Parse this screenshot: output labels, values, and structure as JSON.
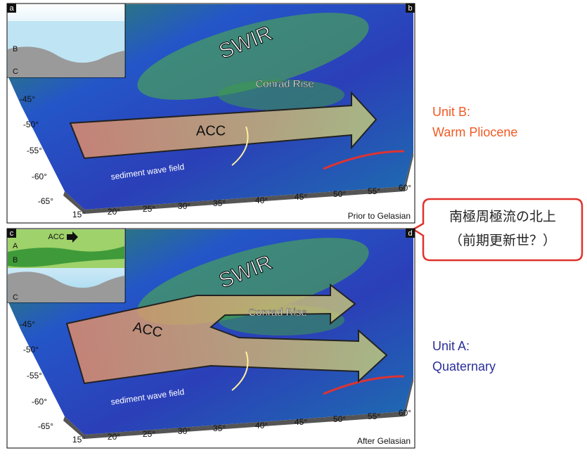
{
  "panels": [
    {
      "inset_label": "a",
      "map_label": "b",
      "inset_layers": [
        "B",
        "C"
      ],
      "swir": "SWIR",
      "conrad_rise": "Conrad Rise",
      "acc": "ACC",
      "sediment": "sediment wave field",
      "lat_labels": [
        "-45°",
        "-50°",
        "-55°",
        "-60°",
        "-65°"
      ],
      "lon_labels": [
        "15°",
        "20°",
        "25°",
        "30°",
        "35°",
        "40°",
        "45°",
        "50°",
        "55°",
        "60°"
      ],
      "caption": "Prior to Gelasian",
      "unit_name": "Unit B:",
      "unit_period": "Warm Pliocene"
    },
    {
      "inset_label": "c",
      "map_label": "d",
      "inset_layers": [
        "A",
        "B",
        "C"
      ],
      "inset_acc": "ACC",
      "swir": "SWIR",
      "conrad_rise": "Conrad Rise",
      "acc": "ACC",
      "sediment": "sediment wave field",
      "lat_labels": [
        "-45°",
        "-50°",
        "-55°",
        "-60°",
        "-65°"
      ],
      "lon_labels": [
        "15°",
        "20°",
        "25°",
        "30°",
        "35°",
        "40°",
        "45°",
        "50°",
        "55°",
        "60°"
      ],
      "caption": "After Gelasian",
      "unit_name": "Unit A:",
      "unit_period": "Quaternary"
    }
  ],
  "callout": {
    "lines": [
      "南極周極流の北上",
      "（前期更新世？）"
    ]
  }
}
